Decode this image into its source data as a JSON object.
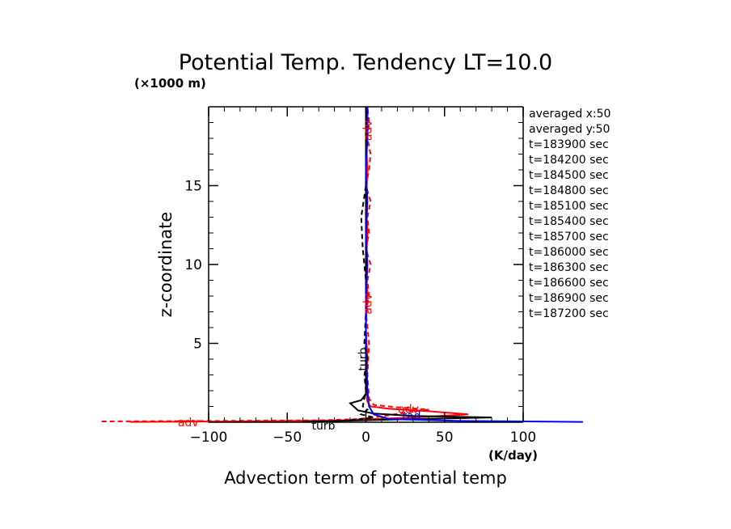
{
  "chart_data": {
    "type": "line",
    "title": "Potential Temp. Tendency LT=10.0",
    "ylabel": "z-coordinate",
    "yunit": "(×1000 m)",
    "xlabel": "Advection term of potential temp",
    "xunit": "(K/day)",
    "xlim": [
      -100,
      100
    ],
    "ylim": [
      0,
      20
    ],
    "xticks": [
      "−100",
      "−50",
      "0",
      "50",
      "100"
    ],
    "xtick_values": [
      -100,
      -50,
      0,
      50,
      100
    ],
    "yticks": [
      "5",
      "10",
      "15"
    ],
    "ytick_values": [
      5,
      10,
      15
    ],
    "info_lines": [
      "averaged  x:50",
      "averaged  y:50",
      "t=183900 sec",
      "t=184200 sec",
      "t=184500 sec",
      "t=184800 sec",
      "t=185100 sec",
      "t=185400 sec",
      "t=185700 sec",
      "t=186000 sec",
      "t=186300 sec",
      "t=186600 sec",
      "t=186900 sec",
      "t=187200 sec"
    ],
    "series": [
      {
        "key": "adv_dashed",
        "color": "#ff0000",
        "dash": "6,4",
        "points": [
          [
            -168,
            0.05
          ],
          [
            -100,
            0.08
          ],
          [
            -30,
            0.12
          ],
          [
            -5,
            0.2
          ],
          [
            8,
            0.35
          ],
          [
            25,
            0.6
          ],
          [
            40,
            0.8
          ],
          [
            20,
            0.95
          ],
          [
            5,
            1.1
          ],
          [
            2,
            1.5
          ],
          [
            1,
            3
          ],
          [
            2,
            5
          ],
          [
            0,
            7
          ],
          [
            2,
            8
          ],
          [
            1,
            9
          ],
          [
            3,
            10
          ],
          [
            0,
            11
          ],
          [
            2,
            12
          ],
          [
            1,
            13
          ],
          [
            3,
            14
          ],
          [
            0,
            15
          ],
          [
            2,
            16
          ],
          [
            3,
            17
          ],
          [
            1,
            18
          ],
          [
            2,
            19
          ],
          [
            1,
            20
          ]
        ]
      },
      {
        "key": "adv_solid",
        "color": "#ff0000",
        "dash": "",
        "points": [
          [
            -150,
            0.02
          ],
          [
            -80,
            0.05
          ],
          [
            -20,
            0.1
          ],
          [
            5,
            0.2
          ],
          [
            30,
            0.3
          ],
          [
            65,
            0.5
          ],
          [
            40,
            0.7
          ],
          [
            15,
            0.85
          ],
          [
            3,
            1.0
          ],
          [
            1,
            1.3
          ],
          [
            0,
            2
          ],
          [
            1,
            4
          ],
          [
            0,
            6
          ],
          [
            1,
            8
          ],
          [
            0,
            10
          ],
          [
            1,
            12
          ],
          [
            0,
            14
          ],
          [
            1,
            16
          ],
          [
            0,
            18
          ],
          [
            1,
            20
          ]
        ]
      },
      {
        "key": "turb_dashed",
        "color": "#000000",
        "dash": "6,4",
        "points": [
          [
            -20,
            0.05
          ],
          [
            -8,
            0.15
          ],
          [
            5,
            0.3
          ],
          [
            -3,
            0.5
          ],
          [
            1,
            0.8
          ],
          [
            -2,
            1.0
          ],
          [
            0,
            2
          ],
          [
            -1,
            3
          ],
          [
            1,
            4
          ],
          [
            -1,
            5
          ],
          [
            0,
            7
          ],
          [
            0,
            9
          ],
          [
            -2,
            11
          ],
          [
            -3,
            13
          ],
          [
            0,
            15
          ],
          [
            0,
            20
          ]
        ]
      },
      {
        "key": "turb_solid",
        "color": "#000000",
        "dash": "",
        "points": [
          [
            -40,
            0.02
          ],
          [
            -10,
            0.1
          ],
          [
            30,
            0.2
          ],
          [
            80,
            0.3
          ],
          [
            30,
            0.4
          ],
          [
            5,
            0.55
          ],
          [
            -5,
            0.75
          ],
          [
            -10,
            1.2
          ],
          [
            -3,
            1.4
          ],
          [
            0,
            1.8
          ],
          [
            0,
            3
          ],
          [
            0,
            6
          ],
          [
            0,
            10
          ],
          [
            0,
            14
          ],
          [
            0,
            20
          ]
        ]
      },
      {
        "key": "rad_blue",
        "color": "#0000ff",
        "dash": "",
        "points": [
          [
            138,
            0.02
          ],
          [
            60,
            0.08
          ],
          [
            15,
            0.2
          ],
          [
            5,
            0.5
          ],
          [
            2,
            1.0
          ],
          [
            1,
            2
          ],
          [
            0,
            5
          ],
          [
            0,
            8
          ],
          [
            1,
            10
          ],
          [
            0,
            12
          ],
          [
            1,
            14
          ],
          [
            0,
            16
          ],
          [
            1,
            18
          ],
          [
            1,
            20
          ]
        ]
      }
    ],
    "annotations": [
      {
        "text": "adv",
        "x": -113,
        "y": 0.0,
        "color": "#ff0000"
      },
      {
        "text": "adv",
        "x": 27,
        "y": 0.85,
        "color": "#ff0000"
      },
      {
        "text": "rad",
        "x": 29,
        "y": 0.4,
        "color": "#0000ff"
      },
      {
        "text": "turb",
        "x": -27,
        "y": -0.2,
        "color": "#000000"
      },
      {
        "text": "adv",
        "x": 1,
        "y": 18.5,
        "color": "#ff0000",
        "rotate": true
      },
      {
        "text": "adv",
        "x": 1,
        "y": 7.5,
        "color": "#ff0000",
        "rotate": true
      },
      {
        "text": "turb",
        "x": -2,
        "y": 4,
        "color": "#000000",
        "rotate": true
      }
    ]
  }
}
